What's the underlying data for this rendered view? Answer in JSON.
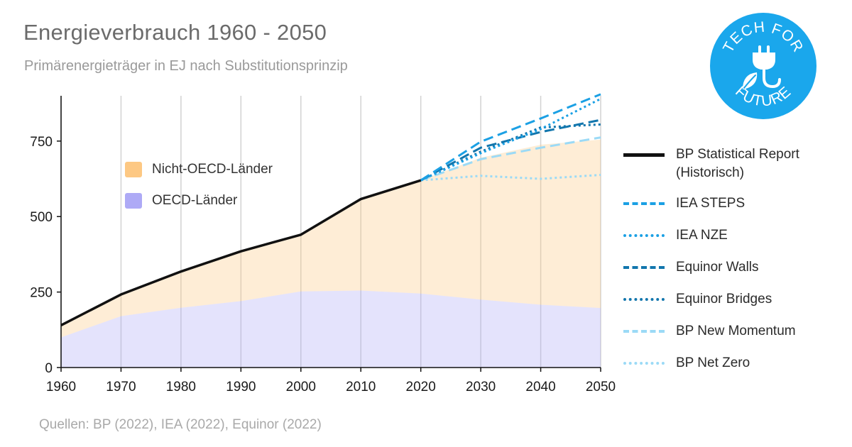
{
  "header": {
    "title": "Energieverbrauch 1960 - 2050",
    "subtitle": "Primärenergieträger in EJ nach Substitutionsprinzip"
  },
  "footer": {
    "source": "Quellen: BP (2022), IEA (2022), Equinor (2022)"
  },
  "logo": {
    "text_top": "TECH FOR",
    "text_bottom": "FUTURE",
    "color": "#1aa7ec",
    "icon": "plug-leaf-icon"
  },
  "chart_data": {
    "type": "area",
    "title": "Energieverbrauch 1960 - 2050",
    "subtitle": "Primärenergieträger in EJ nach Substitutionsprinzip",
    "xlabel": "",
    "ylabel": "",
    "xlim": [
      1960,
      2050
    ],
    "ylim": [
      0,
      900
    ],
    "x_ticks": [
      1960,
      1970,
      1980,
      1990,
      2000,
      2010,
      2020,
      2030,
      2040,
      2050
    ],
    "y_ticks": [
      0,
      250,
      500,
      750
    ],
    "grid": "vertical",
    "area_legend": [
      {
        "label": "Nicht-OECD-Länder",
        "color": "#fdc883"
      },
      {
        "label": "OECD-Länder",
        "color": "#aeaaf6"
      }
    ],
    "areas": {
      "oecd": {
        "x": [
          1960,
          1970,
          1980,
          1990,
          2000,
          2010,
          2020,
          2030,
          2040,
          2050
        ],
        "y": [
          100,
          170,
          198,
          220,
          252,
          255,
          245,
          225,
          208,
          197
        ]
      },
      "total": {
        "x": [
          1960,
          1970,
          1980,
          1990,
          2000,
          2010,
          2020,
          2030,
          2040,
          2050
        ],
        "y": [
          140,
          242,
          318,
          385,
          440,
          558,
          620,
          695,
          738,
          755
        ]
      }
    },
    "series": [
      {
        "name": "BP Statistical Report\n(Historisch)",
        "style": "solid",
        "color": "#111111",
        "x": [
          1960,
          1970,
          1980,
          1990,
          2000,
          2010,
          2020
        ],
        "y": [
          140,
          242,
          318,
          385,
          440,
          558,
          620
        ]
      },
      {
        "name": "IEA STEPS",
        "style": "dashed",
        "color": "#1ba0e4",
        "x": [
          2020,
          2030,
          2040,
          2050
        ],
        "y": [
          620,
          748,
          825,
          905
        ]
      },
      {
        "name": "IEA NZE",
        "style": "dotted",
        "color": "#1ba0e4",
        "x": [
          2020,
          2030,
          2040,
          2050
        ],
        "y": [
          620,
          710,
          790,
          890
        ]
      },
      {
        "name": "Equinor Walls",
        "style": "dashed",
        "color": "#1276ad",
        "x": [
          2020,
          2030,
          2040,
          2050
        ],
        "y": [
          620,
          728,
          780,
          820
        ]
      },
      {
        "name": "Equinor Bridges",
        "style": "dotted",
        "color": "#1276ad",
        "x": [
          2020,
          2030,
          2040,
          2050
        ],
        "y": [
          620,
          715,
          795,
          805
        ]
      },
      {
        "name": "BP New Momentum",
        "style": "dashed",
        "color": "#9bdaf6",
        "x": [
          2020,
          2030,
          2040,
          2050
        ],
        "y": [
          620,
          690,
          728,
          762
        ]
      },
      {
        "name": "BP Net Zero",
        "style": "dotted",
        "color": "#9bdaf6",
        "x": [
          2020,
          2030,
          2040,
          2050
        ],
        "y": [
          620,
          635,
          625,
          638
        ]
      }
    ]
  }
}
